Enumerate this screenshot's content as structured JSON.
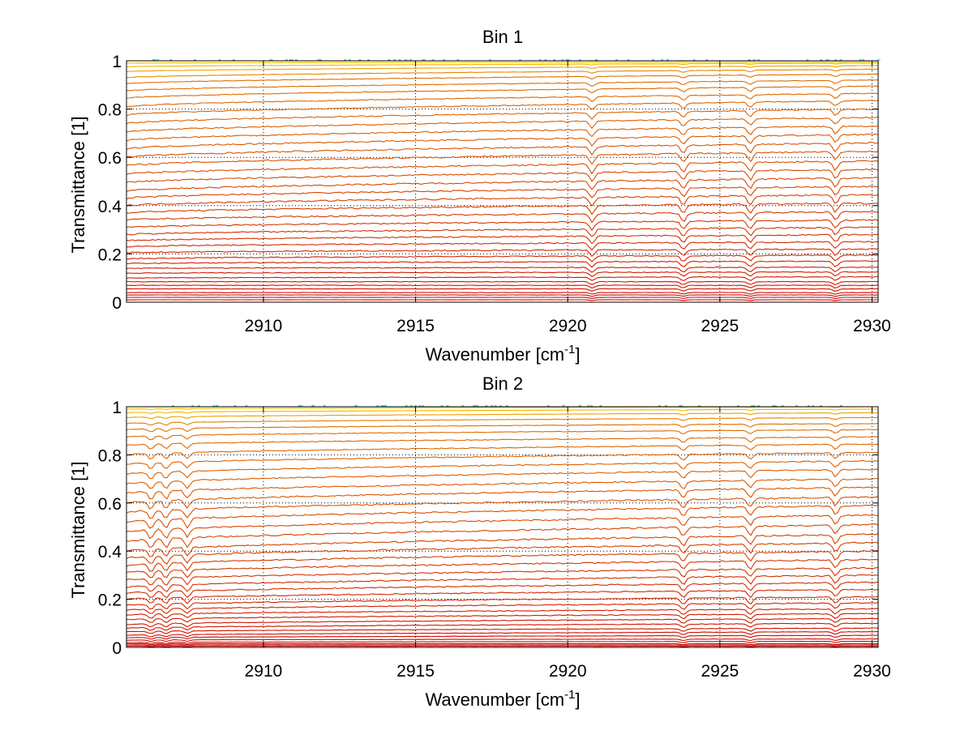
{
  "chart_data": [
    {
      "type": "line",
      "title": "Bin 1",
      "xlabel": "Wavenumber [cm",
      "xlabel_sup": "-1",
      "xlabel_end": "]",
      "ylabel": "Transmittance [1]",
      "xlim": [
        2905.5,
        2930.2
      ],
      "ylim": [
        0,
        1
      ],
      "xticks": [
        2910,
        2915,
        2920,
        2925,
        2930
      ],
      "yticks": [
        0,
        0.2,
        0.4,
        0.6,
        0.8,
        1
      ],
      "ytick_labels": [
        "0",
        "0.2",
        "0.4",
        "0.6",
        "0.8",
        "1"
      ],
      "grid": true,
      "series_count": 40,
      "series_levels": {
        "start_left": [
          1.0,
          0.99,
          0.975,
          0.955,
          0.93,
          0.905,
          0.875,
          0.845,
          0.81,
          0.775,
          0.74,
          0.705,
          0.67,
          0.635,
          0.6,
          0.565,
          0.53,
          0.495,
          0.46,
          0.43,
          0.4,
          0.37,
          0.34,
          0.31,
          0.28,
          0.255,
          0.23,
          0.205,
          0.18,
          0.16,
          0.14,
          0.12,
          0.1,
          0.085,
          0.07,
          0.055,
          0.04,
          0.03,
          0.02,
          0.01
        ],
        "end_right": [
          1.0,
          0.995,
          0.99,
          0.98,
          0.965,
          0.945,
          0.92,
          0.895,
          0.865,
          0.835,
          0.8,
          0.765,
          0.73,
          0.695,
          0.66,
          0.625,
          0.585,
          0.55,
          0.515,
          0.48,
          0.445,
          0.41,
          0.375,
          0.34,
          0.31,
          0.28,
          0.25,
          0.22,
          0.195,
          0.17,
          0.145,
          0.125,
          0.105,
          0.085,
          0.07,
          0.055,
          0.04,
          0.03,
          0.02,
          0.01
        ]
      },
      "absorption_lines_x": [
        2920.8,
        2923.8,
        2926.0,
        2928.8
      ],
      "colors": {
        "low": "#cc0000",
        "mid": "#e07000",
        "high": "#ffcc00",
        "top": "#33cccc"
      }
    },
    {
      "type": "line",
      "title": "Bin 2",
      "xlabel": "Wavenumber [cm",
      "xlabel_sup": "-1",
      "xlabel_end": "]",
      "ylabel": "Transmittance [1]",
      "xlim": [
        2905.5,
        2930.2
      ],
      "ylim": [
        0,
        1
      ],
      "xticks": [
        2910,
        2915,
        2920,
        2925,
        2930
      ],
      "yticks": [
        0,
        0.2,
        0.4,
        0.6,
        0.8,
        1
      ],
      "ytick_labels": [
        "0",
        "0.2",
        "0.4",
        "0.6",
        "0.8",
        "1"
      ],
      "grid": true,
      "series_count": 40,
      "series_levels": {
        "start_left": [
          0.99,
          0.975,
          0.955,
          0.93,
          0.905,
          0.875,
          0.84,
          0.8,
          0.76,
          0.72,
          0.68,
          0.64,
          0.6,
          0.56,
          0.52,
          0.48,
          0.44,
          0.4,
          0.37,
          0.34,
          0.31,
          0.28,
          0.25,
          0.225,
          0.2,
          0.175,
          0.155,
          0.135,
          0.115,
          0.095,
          0.08,
          0.065,
          0.05,
          0.04,
          0.03,
          0.02,
          0.015,
          0.01,
          0.005,
          0.0
        ],
        "end_right": [
          1.0,
          0.99,
          0.975,
          0.955,
          0.93,
          0.905,
          0.875,
          0.845,
          0.81,
          0.775,
          0.74,
          0.7,
          0.665,
          0.625,
          0.59,
          0.55,
          0.51,
          0.47,
          0.435,
          0.4,
          0.365,
          0.33,
          0.3,
          0.27,
          0.24,
          0.21,
          0.185,
          0.16,
          0.14,
          0.12,
          0.1,
          0.08,
          0.065,
          0.05,
          0.035,
          0.025,
          0.015,
          0.01,
          0.005,
          0.0
        ]
      },
      "absorption_lines_x": [
        2906.3,
        2906.8,
        2907.5,
        2923.8,
        2926.0,
        2928.8
      ],
      "colors": {
        "low": "#cc0000",
        "mid": "#e07000",
        "high": "#ffcc00",
        "top": "#33cccc"
      }
    }
  ]
}
